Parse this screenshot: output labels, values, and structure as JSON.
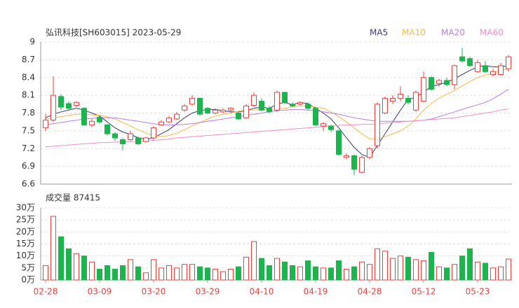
{
  "chart_data": [
    {
      "type": "candlestick",
      "title": "弘讯科技[SH603015] 2023-05-29",
      "up_color": "#e8423f",
      "down_color": "#1db34f",
      "ylim": [
        6.6,
        9
      ],
      "yticks": [
        9,
        8.7,
        8.4,
        8.1,
        7.8,
        7.5,
        7.2,
        6.9,
        6.6
      ],
      "grid": true,
      "open": [
        7.55,
        7.68,
        8.08,
        7.96,
        7.93,
        7.88,
        7.6,
        7.73,
        7.6,
        7.45,
        7.35,
        7.35,
        7.38,
        7.32,
        7.38,
        7.6,
        7.65,
        7.7,
        7.85,
        7.95,
        8.05,
        7.88,
        7.8,
        7.82,
        7.85,
        7.8,
        7.72,
        7.93,
        8.0,
        7.88,
        7.85,
        8.15,
        7.95,
        7.95,
        7.95,
        7.88,
        7.58,
        7.58,
        7.5,
        7.05,
        7.08,
        6.8,
        7.05,
        7.25,
        7.8,
        8.0,
        8.05,
        8.05,
        7.85,
        8.0,
        8.4,
        8.3,
        8.35,
        8.28,
        8.75,
        8.72,
        8.5,
        8.6,
        8.45,
        8.45,
        8.55
      ],
      "high": [
        7.78,
        8.42,
        8.12,
        8.0,
        8.0,
        7.9,
        7.7,
        7.76,
        7.62,
        7.48,
        7.38,
        7.5,
        7.4,
        7.4,
        7.58,
        7.68,
        7.75,
        7.82,
        7.95,
        8.1,
        8.06,
        7.9,
        7.88,
        7.88,
        7.9,
        7.82,
        7.95,
        8.15,
        8.05,
        7.92,
        8.18,
        8.16,
        7.98,
        8.0,
        7.98,
        7.9,
        7.65,
        7.6,
        7.52,
        7.12,
        7.1,
        7.08,
        7.22,
        7.98,
        8.08,
        8.1,
        8.25,
        8.1,
        8.18,
        8.5,
        8.42,
        8.38,
        8.4,
        8.62,
        8.9,
        8.75,
        8.7,
        8.68,
        8.55,
        8.65,
        8.78
      ],
      "low": [
        7.5,
        7.65,
        7.85,
        7.85,
        7.9,
        7.58,
        7.56,
        7.62,
        7.42,
        7.33,
        7.17,
        7.33,
        7.26,
        7.3,
        7.35,
        7.58,
        7.63,
        7.68,
        7.82,
        7.92,
        7.76,
        7.78,
        7.78,
        7.8,
        7.8,
        7.68,
        7.7,
        7.9,
        7.83,
        7.8,
        7.82,
        7.95,
        7.9,
        7.92,
        7.85,
        7.58,
        7.5,
        7.48,
        7.08,
        7.02,
        6.75,
        6.78,
        7.02,
        7.2,
        7.78,
        7.95,
        8.0,
        7.95,
        7.82,
        7.98,
        8.18,
        8.25,
        8.25,
        8.2,
        8.65,
        8.58,
        8.48,
        8.48,
        8.42,
        8.43,
        8.5
      ],
      "close": [
        7.68,
        8.1,
        7.9,
        7.88,
        7.98,
        7.6,
        7.66,
        7.65,
        7.45,
        7.38,
        7.28,
        7.45,
        7.28,
        7.38,
        7.55,
        7.65,
        7.72,
        7.78,
        7.92,
        8.05,
        7.78,
        7.8,
        7.85,
        7.85,
        7.88,
        7.7,
        7.92,
        8.1,
        7.85,
        7.82,
        8.15,
        7.98,
        7.92,
        7.98,
        7.88,
        7.6,
        7.62,
        7.52,
        7.1,
        7.08,
        6.85,
        7.05,
        7.2,
        7.95,
        8.05,
        8.05,
        8.12,
        7.98,
        8.15,
        8.4,
        8.2,
        8.35,
        8.28,
        8.6,
        8.68,
        8.6,
        8.65,
        8.5,
        8.5,
        8.6,
        8.75
      ],
      "series": [
        {
          "name": "MA5",
          "color": "#363a78",
          "values": [
            7.72,
            7.78,
            7.82,
            7.85,
            7.88,
            7.85,
            7.8,
            7.75,
            7.65,
            7.55,
            7.48,
            7.44,
            7.38,
            7.36,
            7.38,
            7.45,
            7.52,
            7.62,
            7.72,
            7.8,
            7.84,
            7.86,
            7.86,
            7.84,
            7.82,
            7.82,
            7.84,
            7.88,
            7.9,
            7.88,
            7.95,
            7.98,
            7.94,
            7.98,
            7.96,
            7.88,
            7.8,
            7.7,
            7.55,
            7.38,
            7.22,
            7.1,
            7.05,
            7.25,
            7.45,
            7.65,
            7.85,
            8.03,
            8.07,
            8.15,
            8.25,
            8.28,
            8.32,
            8.38,
            8.45,
            8.52,
            8.58,
            8.6,
            8.58,
            8.58,
            8.6
          ]
        },
        {
          "name": "MA10",
          "color": "#f5b946",
          "values": [
            7.7,
            7.72,
            7.74,
            7.76,
            7.78,
            7.78,
            7.77,
            7.76,
            7.74,
            7.7,
            7.64,
            7.58,
            7.52,
            7.46,
            7.42,
            7.4,
            7.42,
            7.46,
            7.52,
            7.58,
            7.64,
            7.7,
            7.75,
            7.78,
            7.8,
            7.83,
            7.85,
            7.85,
            7.86,
            7.86,
            7.87,
            7.88,
            7.9,
            7.92,
            7.92,
            7.9,
            7.88,
            7.82,
            7.74,
            7.65,
            7.55,
            7.45,
            7.36,
            7.36,
            7.4,
            7.45,
            7.5,
            7.58,
            7.7,
            7.85,
            7.96,
            8.05,
            8.12,
            8.18,
            8.26,
            8.33,
            8.4,
            8.44,
            8.48,
            8.52,
            8.55
          ]
        },
        {
          "name": "MA20",
          "color": "#b77ee0",
          "values": [
            7.6,
            7.62,
            7.64,
            7.66,
            7.68,
            7.7,
            7.71,
            7.72,
            7.72,
            7.72,
            7.7,
            7.68,
            7.66,
            7.64,
            7.62,
            7.6,
            7.6,
            7.6,
            7.61,
            7.62,
            7.64,
            7.66,
            7.68,
            7.7,
            7.72,
            7.74,
            7.76,
            7.78,
            7.8,
            7.82,
            7.84,
            7.85,
            7.86,
            7.86,
            7.85,
            7.84,
            7.82,
            7.8,
            7.78,
            7.75,
            7.72,
            7.7,
            7.68,
            7.66,
            7.66,
            7.66,
            7.66,
            7.66,
            7.67,
            7.68,
            7.7,
            7.74,
            7.78,
            7.82,
            7.86,
            7.9,
            7.94,
            7.98,
            8.04,
            8.12,
            8.2
          ]
        },
        {
          "name": "MA60",
          "color": "#f08cc8",
          "values": [
            7.23,
            7.24,
            7.25,
            7.26,
            7.27,
            7.28,
            7.29,
            7.3,
            7.3,
            7.31,
            7.31,
            7.32,
            7.32,
            7.33,
            7.34,
            7.35,
            7.36,
            7.38,
            7.39,
            7.4,
            7.41,
            7.42,
            7.43,
            7.44,
            7.45,
            7.46,
            7.47,
            7.48,
            7.49,
            7.5,
            7.51,
            7.52,
            7.53,
            7.54,
            7.55,
            7.56,
            7.57,
            7.58,
            7.59,
            7.6,
            7.6,
            7.61,
            7.61,
            7.62,
            7.63,
            7.64,
            7.65,
            7.66,
            7.67,
            7.68,
            7.69,
            7.7,
            7.71,
            7.72,
            7.74,
            7.76,
            7.78,
            7.8,
            7.82,
            7.85,
            7.87
          ]
        }
      ]
    },
    {
      "type": "bar",
      "title": "成交量 87415",
      "categories": [
        "02-28",
        null,
        null,
        null,
        null,
        null,
        null,
        "03-09",
        null,
        null,
        null,
        null,
        null,
        null,
        "03-20",
        null,
        null,
        null,
        null,
        null,
        null,
        "03-29",
        null,
        null,
        null,
        null,
        null,
        null,
        "04-10",
        null,
        null,
        null,
        null,
        null,
        null,
        "04-19",
        null,
        null,
        null,
        null,
        null,
        null,
        "04-28",
        null,
        null,
        null,
        null,
        null,
        null,
        "05-12",
        null,
        null,
        null,
        null,
        null,
        null,
        "05-23",
        null,
        null,
        null,
        null
      ],
      "values": [
        60000,
        265000,
        180000,
        130000,
        110000,
        100000,
        75000,
        45000,
        60000,
        45000,
        60000,
        85000,
        55000,
        30000,
        85000,
        50000,
        60000,
        50000,
        65000,
        65000,
        55000,
        50000,
        45000,
        35000,
        45000,
        55000,
        95000,
        160000,
        90000,
        60000,
        90000,
        75000,
        60000,
        55000,
        80000,
        55000,
        50000,
        50000,
        80000,
        45000,
        55000,
        75000,
        65000,
        130000,
        120000,
        90000,
        100000,
        95000,
        85000,
        80000,
        115000,
        55000,
        50000,
        65000,
        100000,
        130000,
        75000,
        70000,
        50000,
        55000,
        87415
      ],
      "ylim": [
        0,
        300000
      ],
      "yticks": [
        {
          "value": 300000,
          "label": "30万"
        },
        {
          "value": 250000,
          "label": "25万"
        },
        {
          "value": 200000,
          "label": "20万"
        },
        {
          "value": 150000,
          "label": "15万"
        },
        {
          "value": 100000,
          "label": "10万"
        },
        {
          "value": 50000,
          "label": "5万"
        },
        {
          "value": 0,
          "label": "0万"
        }
      ],
      "grid": true
    }
  ]
}
